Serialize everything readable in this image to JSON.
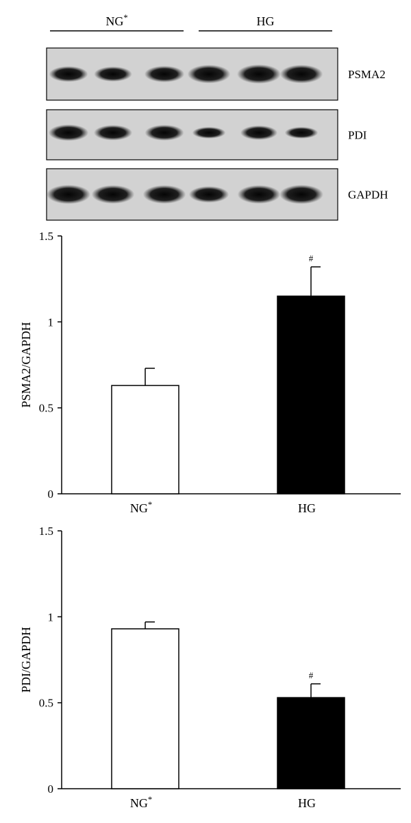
{
  "blot": {
    "groups": [
      {
        "label": "NG",
        "sup": "*"
      },
      {
        "label": "HG",
        "sup": ""
      }
    ],
    "rows": [
      {
        "label": "PSMA2",
        "bands": [
          0.75,
          0.7,
          0.8,
          0.95,
          1.0,
          0.95
        ]
      },
      {
        "label": "PDI",
        "bands": [
          0.8,
          0.72,
          0.75,
          0.45,
          0.65,
          0.45
        ]
      },
      {
        "label": "GAPDH",
        "bands": [
          1.0,
          0.95,
          0.95,
          0.8,
          0.95,
          1.0
        ]
      }
    ]
  },
  "chart_data": [
    {
      "type": "bar",
      "categories": [
        {
          "label": "NG",
          "sup": "*"
        },
        {
          "label": "HG",
          "sup": ""
        }
      ],
      "values": [
        0.63,
        1.15
      ],
      "errors": [
        0.1,
        0.17
      ],
      "annotations": [
        "",
        "#"
      ],
      "colors": [
        "#ffffff",
        "#000000"
      ],
      "ylabel": "PSMA2/GAPDH",
      "ylim": [
        0,
        1.5
      ],
      "yticks": [
        0,
        0.5,
        1,
        1.5
      ],
      "ytick_labels": [
        "0",
        "0.5",
        "1",
        "1.5"
      ],
      "grid": false
    },
    {
      "type": "bar",
      "categories": [
        {
          "label": "NG",
          "sup": "*"
        },
        {
          "label": "HG",
          "sup": ""
        }
      ],
      "values": [
        0.93,
        0.53
      ],
      "errors": [
        0.04,
        0.08
      ],
      "annotations": [
        "",
        "#"
      ],
      "colors": [
        "#ffffff",
        "#000000"
      ],
      "ylabel": "PDI/GAPDH",
      "ylim": [
        0,
        1.5
      ],
      "yticks": [
        0,
        0.5,
        1,
        1.5
      ],
      "ytick_labels": [
        "0",
        "0.5",
        "1",
        "1.5"
      ],
      "grid": false
    }
  ]
}
